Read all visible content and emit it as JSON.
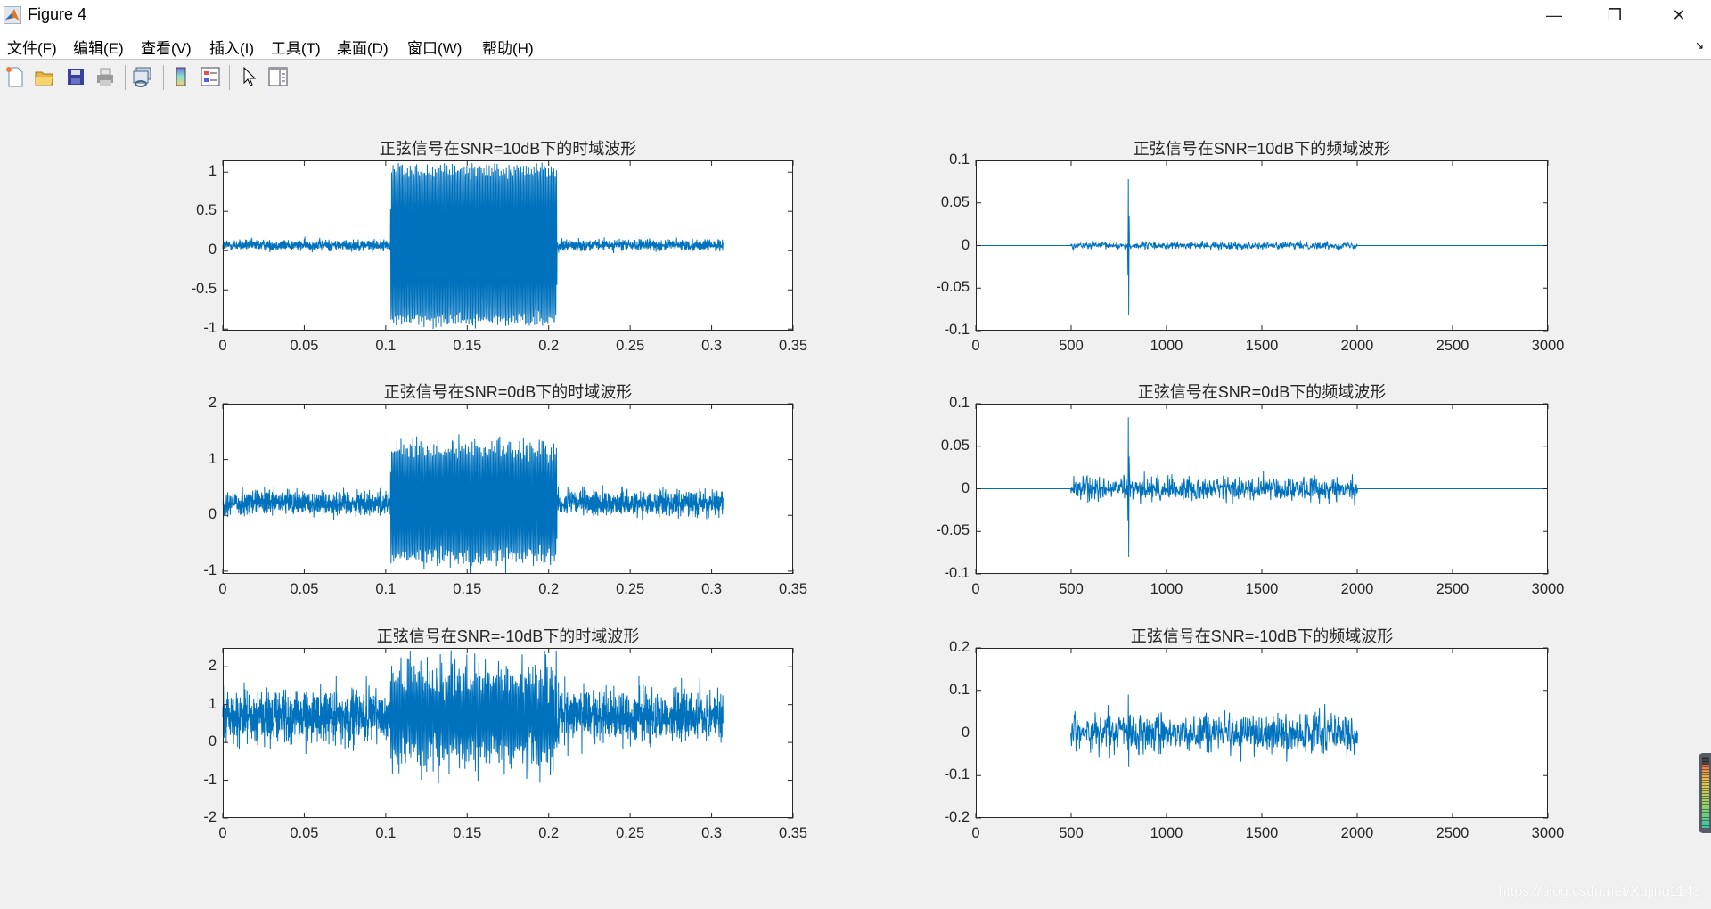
{
  "window": {
    "title": "Figure 4",
    "minimize": "—",
    "restore": "❐",
    "close": "✕"
  },
  "menu": [
    "文件(F)",
    "编辑(E)",
    "查看(V)",
    "插入(I)",
    "工具(T)",
    "桌面(D)",
    "窗口(W)",
    "帮助(H)"
  ],
  "toolbar": [
    "new-figure-icon",
    "open-file-icon",
    "save-icon",
    "print-icon",
    "link-plot-icon",
    "colorbar-icon",
    "legend-icon",
    "pointer-icon",
    "property-editor-icon"
  ],
  "watermark": "https://blog.csdn.net/Xujing1143",
  "line_color": "#0072bd",
  "chart_data": [
    {
      "type": "line",
      "title": "正弦信号在SNR=10dB下的时域波形",
      "xlim": [
        0,
        0.35
      ],
      "ylim": [
        -1.02,
        1.15
      ],
      "xticks": [
        "0",
        "0.05",
        "0.1",
        "0.15",
        "0.2",
        "0.25",
        "0.3",
        "0.35"
      ],
      "xtick_values": [
        0,
        0.05,
        0.1,
        0.15,
        0.2,
        0.25,
        0.3,
        0.35
      ],
      "yticks": [
        "-1",
        "-0.5",
        "0",
        "0.5",
        "1"
      ],
      "ytick_values": [
        -1,
        -0.5,
        0,
        0.5,
        1
      ],
      "signal": {
        "x_end": 0.307,
        "burst": [
          0.103,
          0.205
        ],
        "burst_amplitude": 1.0,
        "offset": 0.07,
        "noise_amplitude": 0.05
      }
    },
    {
      "type": "line",
      "title": "正弦信号在SNR=10dB下的频域波形",
      "xlim": [
        0,
        3000
      ],
      "ylim": [
        -0.1,
        0.1
      ],
      "xticks": [
        "0",
        "500",
        "1000",
        "1500",
        "2000",
        "2500",
        "3000"
      ],
      "xtick_values": [
        0,
        500,
        1000,
        1500,
        2000,
        2500,
        3000
      ],
      "yticks": [
        "-0.1",
        "-0.05",
        "0",
        "0.05",
        "0.1"
      ],
      "ytick_values": [
        -0.1,
        -0.05,
        0,
        0.05,
        0.1
      ],
      "signal": {
        "noise_band": [
          500,
          2000
        ],
        "peak_freq": 800,
        "peak": [
          0.078,
          -0.082
        ],
        "noise_amplitude": 0.005
      }
    },
    {
      "type": "line",
      "title": "正弦信号在SNR=0dB下的时域波形",
      "xlim": [
        0,
        0.35
      ],
      "ylim": [
        -1.05,
        2
      ],
      "xticks": [
        "0",
        "0.05",
        "0.1",
        "0.15",
        "0.2",
        "0.25",
        "0.3",
        "0.35"
      ],
      "xtick_values": [
        0,
        0.05,
        0.1,
        0.15,
        0.2,
        0.25,
        0.3,
        0.35
      ],
      "yticks": [
        "-1",
        "0",
        "1",
        "2"
      ],
      "ytick_values": [
        -1,
        0,
        1,
        2
      ],
      "signal": {
        "x_end": 0.307,
        "burst": [
          0.103,
          0.205
        ],
        "burst_amplitude": 1.0,
        "offset": 0.22,
        "noise_amplitude": 0.16
      }
    },
    {
      "type": "line",
      "title": "正弦信号在SNR=0dB下的频域波形",
      "xlim": [
        0,
        3000
      ],
      "ylim": [
        -0.1,
        0.1
      ],
      "xticks": [
        "0",
        "500",
        "1000",
        "1500",
        "2000",
        "2500",
        "3000"
      ],
      "xtick_values": [
        0,
        500,
        1000,
        1500,
        2000,
        2500,
        3000
      ],
      "yticks": [
        "-0.1",
        "-0.05",
        "0",
        "0.05",
        "0.1"
      ],
      "ytick_values": [
        -0.1,
        -0.05,
        0,
        0.05,
        0.1
      ],
      "signal": {
        "noise_band": [
          500,
          2000
        ],
        "peak_freq": 800,
        "peak": [
          0.084,
          -0.08
        ],
        "noise_amplitude": 0.017
      }
    },
    {
      "type": "line",
      "title": "正弦信号在SNR=-10dB下的时域波形",
      "xlim": [
        0,
        0.35
      ],
      "ylim": [
        -2,
        2.5
      ],
      "xticks": [
        "0",
        "0.05",
        "0.1",
        "0.15",
        "0.2",
        "0.25",
        "0.3",
        "0.35"
      ],
      "xtick_values": [
        0,
        0.05,
        0.1,
        0.15,
        0.2,
        0.25,
        0.3,
        0.35
      ],
      "yticks": [
        "-2",
        "-1",
        "0",
        "1",
        "2"
      ],
      "ytick_values": [
        -2,
        -1,
        0,
        1,
        2
      ],
      "signal": {
        "x_end": 0.307,
        "burst": [
          0.103,
          0.205
        ],
        "burst_amplitude": 1.0,
        "offset": 0.7,
        "noise_amplitude": 0.5
      }
    },
    {
      "type": "line",
      "title": "正弦信号在SNR=-10dB下的频域波形",
      "xlim": [
        0,
        3000
      ],
      "ylim": [
        -0.2,
        0.2
      ],
      "xticks": [
        "0",
        "500",
        "1000",
        "1500",
        "2000",
        "2500",
        "3000"
      ],
      "xtick_values": [
        0,
        500,
        1000,
        1500,
        2000,
        2500,
        3000
      ],
      "yticks": [
        "-0.2",
        "-0.1",
        "0",
        "0.1",
        "0.2"
      ],
      "ytick_values": [
        -0.2,
        -0.1,
        0,
        0.1,
        0.2
      ],
      "signal": {
        "noise_band": [
          500,
          2000
        ],
        "peak_freq": 800,
        "peak": [
          0.09,
          -0.08
        ],
        "noise_amplitude": 0.055
      }
    }
  ]
}
